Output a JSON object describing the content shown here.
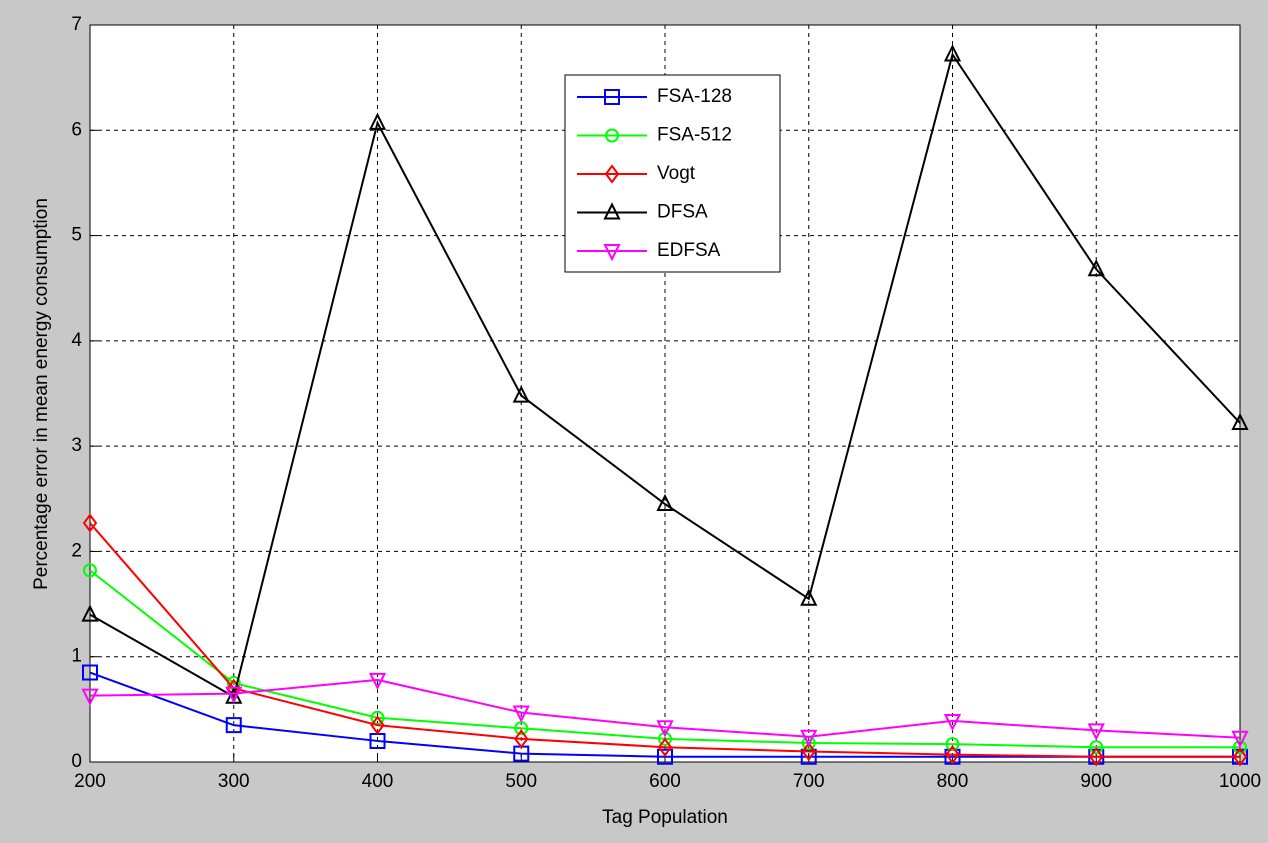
{
  "chart_data": {
    "type": "line",
    "x_label": "Tag Population",
    "y_label": "Percentage error in mean energy consumption",
    "x": [
      200,
      300,
      400,
      500,
      600,
      700,
      800,
      900,
      1000
    ],
    "series": [
      {
        "name": "FSA-128",
        "color": "#0000ff",
        "marker": "square",
        "values": [
          0.85,
          0.35,
          0.2,
          0.08,
          0.05,
          0.05,
          0.05,
          0.05,
          0.05
        ]
      },
      {
        "name": "FSA-512",
        "color": "#00ff00",
        "marker": "circle",
        "values": [
          1.82,
          0.75,
          0.42,
          0.32,
          0.22,
          0.18,
          0.17,
          0.14,
          0.14
        ]
      },
      {
        "name": "Vogt",
        "color": "#ff0000",
        "marker": "diamond",
        "values": [
          2.27,
          0.7,
          0.35,
          0.22,
          0.14,
          0.1,
          0.07,
          0.05,
          0.05
        ]
      },
      {
        "name": "DFSA",
        "color": "#000000",
        "marker": "triangle-up",
        "values": [
          1.4,
          0.62,
          6.07,
          3.48,
          2.45,
          1.55,
          6.72,
          4.68,
          3.22
        ]
      },
      {
        "name": "EDFSA",
        "color": "#ff00ff",
        "marker": "triangle-down",
        "values": [
          0.63,
          0.65,
          0.78,
          0.47,
          0.33,
          0.24,
          0.39,
          0.3,
          0.23
        ]
      }
    ],
    "xlim": [
      200,
      1000
    ],
    "xticks": [
      200,
      300,
      400,
      500,
      600,
      700,
      800,
      900,
      1000
    ],
    "ylim": [
      0,
      7
    ],
    "yticks": [
      0,
      1,
      2,
      3,
      4,
      5,
      6,
      7
    ],
    "grid": true,
    "legend": "north"
  }
}
